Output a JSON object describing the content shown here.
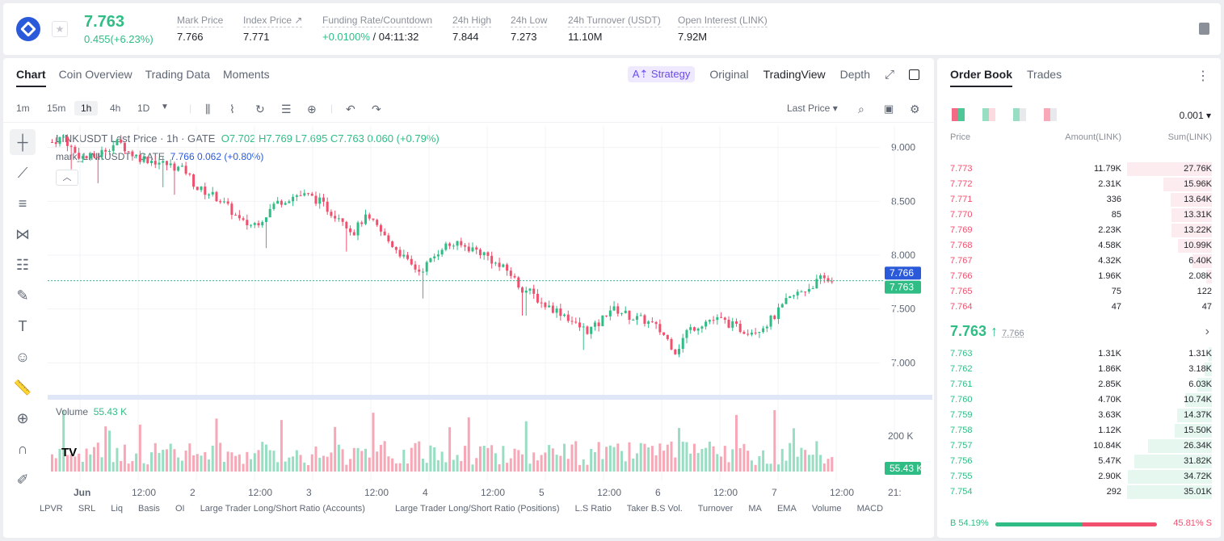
{
  "header": {
    "price": "7.763",
    "change": "0.455(+6.23%)",
    "stats": [
      {
        "label": "Mark Price",
        "value": "7.766"
      },
      {
        "label": "Index Price ↗",
        "value": "7.771"
      },
      {
        "label": "Funding Rate/Countdown",
        "value_green": "+0.0100%",
        "value": "/ 04:11:32"
      },
      {
        "label": "24h High",
        "value": "7.844"
      },
      {
        "label": "24h Low",
        "value": "7.273"
      },
      {
        "label": "24h Turnover (USDT)",
        "value": "11.10M"
      },
      {
        "label": "Open Interest (LINK)",
        "value": "7.92M"
      }
    ]
  },
  "chart_tabs": [
    "Chart",
    "Coin Overview",
    "Trading Data",
    "Moments"
  ],
  "view_tabs": {
    "strategy": "A⇡ Strategy",
    "original": "Original",
    "tradingview": "TradingView",
    "depth": "Depth"
  },
  "toolbar": {
    "intervals": [
      "1m",
      "15m",
      "1h",
      "4h",
      "1D"
    ],
    "last_price": "Last Price"
  },
  "legend": {
    "title": "LINKUSDT Last Price · 1h · GATE",
    "o": "O7.702",
    "h": "H7.769",
    "l": "L7.695",
    "c": "C7.763",
    "chg": "0.060 (+0.79%)",
    "mark": "mark_LINKUSDT · GATE",
    "mark_val": "7.766",
    "mark_chg": "0.062",
    "mark_pct": "(+0.80%)"
  },
  "volume_legend": {
    "label": "Volume",
    "value": "55.43 K"
  },
  "chart_data": {
    "type": "candlestick",
    "x_ticks": [
      "Jun",
      "12:00",
      "2",
      "12:00",
      "3",
      "12:00",
      "4",
      "12:00",
      "5",
      "12:00",
      "6",
      "12:00",
      "7",
      "12:00",
      "21:"
    ],
    "y_ticks": [
      "9.000",
      "8.500",
      "8.000",
      "7.500",
      "7.000"
    ],
    "y_range": [
      6.8,
      9.2
    ],
    "volume_tick": "200 K",
    "price_tags": [
      "7.766",
      "7.763"
    ],
    "volume_tag": "55.43 K",
    "close_path": [
      9.05,
      9.1,
      8.95,
      8.9,
      8.92,
      9.0,
      9.05,
      8.95,
      8.9,
      8.88,
      8.85,
      8.82,
      8.78,
      8.62,
      8.58,
      8.52,
      8.42,
      8.3,
      8.28,
      8.35,
      8.48,
      8.52,
      8.56,
      8.55,
      8.5,
      8.4,
      8.35,
      8.2,
      8.35,
      8.28,
      8.15,
      8.05,
      7.92,
      7.85,
      7.95,
      8.08,
      8.1,
      8.08,
      8.05,
      8.0,
      7.9,
      7.85,
      7.7,
      7.65,
      7.55,
      7.5,
      7.45,
      7.35,
      7.3,
      7.35,
      7.5,
      7.48,
      7.42,
      7.4,
      7.35,
      7.25,
      7.1,
      7.3,
      7.35,
      7.4,
      7.4,
      7.35,
      7.3,
      7.3,
      7.35,
      7.45,
      7.58,
      7.65,
      7.7,
      7.78,
      7.76
    ]
  },
  "bottom_bar": [
    "LPVR",
    "SRL",
    "Liq",
    "Basis",
    "OI",
    "Large Trader Long/Short Ratio (Accounts)",
    "Large Trader Long/Short Ratio (Positions)",
    "L.S Ratio",
    "Taker B.S Vol.",
    "Turnover",
    "MA",
    "EMA",
    "Volume",
    "MACD"
  ],
  "orderbook": {
    "tabs": [
      "Order Book",
      "Trades"
    ],
    "precision": "0.001",
    "headers": [
      "Price",
      "Amount(LINK)",
      "Sum(LINK)"
    ],
    "asks": [
      {
        "p": "7.773",
        "a": "11.79K",
        "s": "27.76K",
        "d": 1.0
      },
      {
        "p": "7.772",
        "a": "2.31K",
        "s": "15.96K",
        "d": 0.57
      },
      {
        "p": "7.771",
        "a": "336",
        "s": "13.64K",
        "d": 0.49
      },
      {
        "p": "7.770",
        "a": "85",
        "s": "13.31K",
        "d": 0.48
      },
      {
        "p": "7.769",
        "a": "2.23K",
        "s": "13.22K",
        "d": 0.48
      },
      {
        "p": "7.768",
        "a": "4.58K",
        "s": "10.99K",
        "d": 0.4
      },
      {
        "p": "7.767",
        "a": "4.32K",
        "s": "6.40K",
        "d": 0.23
      },
      {
        "p": "7.766",
        "a": "1.96K",
        "s": "2.08K",
        "d": 0.07
      },
      {
        "p": "7.765",
        "a": "75",
        "s": "122",
        "d": 0.0
      },
      {
        "p": "7.764",
        "a": "47",
        "s": "47",
        "d": 0.0
      }
    ],
    "mid_price": "7.763 ↑",
    "mid_mark": "7.766",
    "bids": [
      {
        "p": "7.763",
        "a": "1.31K",
        "s": "1.31K",
        "d": 0.04
      },
      {
        "p": "7.762",
        "a": "1.86K",
        "s": "3.18K",
        "d": 0.09
      },
      {
        "p": "7.761",
        "a": "2.85K",
        "s": "6.03K",
        "d": 0.17
      },
      {
        "p": "7.760",
        "a": "4.70K",
        "s": "10.74K",
        "d": 0.31
      },
      {
        "p": "7.759",
        "a": "3.63K",
        "s": "14.37K",
        "d": 0.41
      },
      {
        "p": "7.758",
        "a": "1.12K",
        "s": "15.50K",
        "d": 0.44
      },
      {
        "p": "7.757",
        "a": "10.84K",
        "s": "26.34K",
        "d": 0.75
      },
      {
        "p": "7.756",
        "a": "5.47K",
        "s": "31.82K",
        "d": 0.91
      },
      {
        "p": "7.755",
        "a": "2.90K",
        "s": "34.72K",
        "d": 0.99
      },
      {
        "p": "7.754",
        "a": "292",
        "s": "35.01K",
        "d": 1.0
      }
    ],
    "buy_pct": "B 54.19%",
    "sell_pct": "45.81% S",
    "buy_ratio": 0.5419
  },
  "colors": {
    "up": "#2fbd85",
    "down": "#f0506e",
    "ask_bg": "#fdecef",
    "bid_bg": "#e6f7ef"
  }
}
